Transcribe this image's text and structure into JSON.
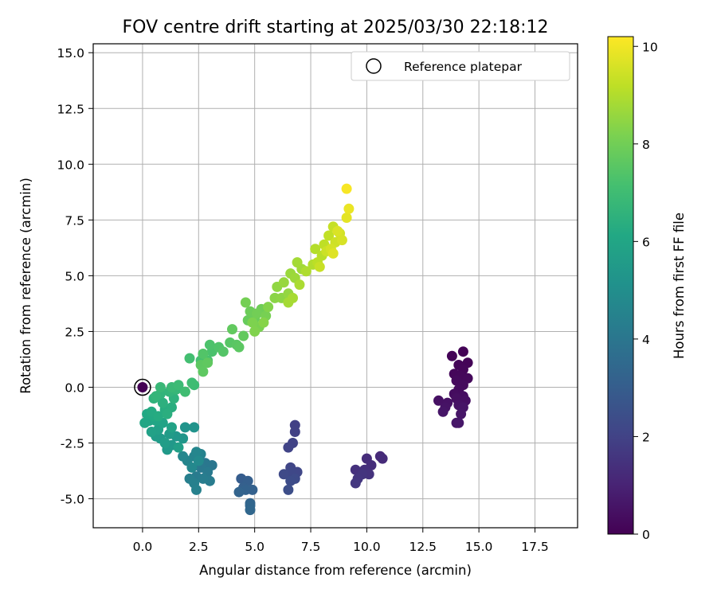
{
  "chart_data": {
    "type": "scatter",
    "title": "FOV centre drift starting at 2025/03/30 22:18:12",
    "xlabel": "Angular distance from reference (arcmin)",
    "ylabel": "Rotation from reference (arcmin)",
    "xlim": [
      -2.2,
      19.4
    ],
    "ylim": [
      -6.3,
      15.4
    ],
    "xticks": [
      "0.0",
      "2.5",
      "5.0",
      "7.5",
      "10.0",
      "12.5",
      "15.0",
      "17.5"
    ],
    "xtick_values": [
      0,
      2.5,
      5,
      7.5,
      10,
      12.5,
      15,
      17.5
    ],
    "yticks": [
      "-5.0",
      "-2.5",
      "0.0",
      "2.5",
      "5.0",
      "7.5",
      "10.0",
      "12.5",
      "15.0"
    ],
    "ytick_values": [
      -5,
      -2.5,
      0,
      2.5,
      5,
      7.5,
      10,
      12.5,
      15
    ],
    "grid": true,
    "legend": {
      "position": "top-right",
      "entries": [
        "Reference platepar"
      ]
    },
    "reference_point": {
      "x": 0.0,
      "y": 0.0
    },
    "colorbar": {
      "label": "Hours from first FF file",
      "range": [
        0,
        10.2
      ],
      "ticks": [
        "0",
        "2",
        "4",
        "6",
        "8",
        "10"
      ],
      "tick_values": [
        0,
        2,
        4,
        6,
        8,
        10
      ],
      "colormap": "viridis"
    },
    "points": [
      {
        "x": 14.3,
        "y": 1.6,
        "t": 0.05
      },
      {
        "x": 13.8,
        "y": 1.4,
        "t": 0.08
      },
      {
        "x": 14.5,
        "y": 1.1,
        "t": 0.1
      },
      {
        "x": 14.1,
        "y": 1.0,
        "t": 0.12
      },
      {
        "x": 14.3,
        "y": 0.8,
        "t": 0.15
      },
      {
        "x": 13.9,
        "y": 0.6,
        "t": 0.18
      },
      {
        "x": 14.2,
        "y": 0.5,
        "t": 0.2
      },
      {
        "x": 14.5,
        "y": 0.4,
        "t": 0.22
      },
      {
        "x": 14.0,
        "y": 0.3,
        "t": 0.25
      },
      {
        "x": 14.3,
        "y": 0.1,
        "t": 0.28
      },
      {
        "x": 14.1,
        "y": -0.1,
        "t": 0.3
      },
      {
        "x": 13.9,
        "y": -0.3,
        "t": 0.33
      },
      {
        "x": 14.3,
        "y": -0.4,
        "t": 0.36
      },
      {
        "x": 14.0,
        "y": -0.5,
        "t": 0.4
      },
      {
        "x": 14.4,
        "y": -0.6,
        "t": 0.42
      },
      {
        "x": 13.2,
        "y": -0.6,
        "t": 0.45
      },
      {
        "x": 13.6,
        "y": -0.7,
        "t": 0.48
      },
      {
        "x": 14.1,
        "y": -0.8,
        "t": 0.5
      },
      {
        "x": 13.5,
        "y": -0.9,
        "t": 0.52
      },
      {
        "x": 14.3,
        "y": -0.9,
        "t": 0.55
      },
      {
        "x": 13.4,
        "y": -1.1,
        "t": 0.58
      },
      {
        "x": 14.2,
        "y": -1.2,
        "t": 0.6
      },
      {
        "x": 14.0,
        "y": -1.6,
        "t": 0.62
      },
      {
        "x": 14.1,
        "y": -1.6,
        "t": 0.64
      },
      {
        "x": 10.6,
        "y": -3.1,
        "t": 1.2
      },
      {
        "x": 10.7,
        "y": -3.2,
        "t": 1.25
      },
      {
        "x": 10.0,
        "y": -3.2,
        "t": 1.3
      },
      {
        "x": 10.2,
        "y": -3.5,
        "t": 1.35
      },
      {
        "x": 9.9,
        "y": -3.7,
        "t": 1.4
      },
      {
        "x": 9.5,
        "y": -3.7,
        "t": 1.45
      },
      {
        "x": 10.1,
        "y": -3.9,
        "t": 1.5
      },
      {
        "x": 9.8,
        "y": -3.9,
        "t": 1.55
      },
      {
        "x": 9.6,
        "y": -4.1,
        "t": 1.6
      },
      {
        "x": 9.5,
        "y": -4.3,
        "t": 1.65
      },
      {
        "x": 6.8,
        "y": -1.7,
        "t": 1.9
      },
      {
        "x": 6.8,
        "y": -2.0,
        "t": 1.95
      },
      {
        "x": 6.7,
        "y": -2.5,
        "t": 2.0
      },
      {
        "x": 6.5,
        "y": -2.7,
        "t": 2.05
      },
      {
        "x": 6.6,
        "y": -3.6,
        "t": 2.1
      },
      {
        "x": 6.9,
        "y": -3.8,
        "t": 2.15
      },
      {
        "x": 6.6,
        "y": -3.8,
        "t": 2.2
      },
      {
        "x": 6.3,
        "y": -3.9,
        "t": 2.25
      },
      {
        "x": 6.8,
        "y": -4.1,
        "t": 2.3
      },
      {
        "x": 6.6,
        "y": -4.2,
        "t": 2.35
      },
      {
        "x": 6.5,
        "y": -4.6,
        "t": 2.4
      },
      {
        "x": 4.4,
        "y": -4.1,
        "t": 3.0
      },
      {
        "x": 4.7,
        "y": -4.2,
        "t": 3.05
      },
      {
        "x": 4.5,
        "y": -4.5,
        "t": 3.1
      },
      {
        "x": 4.9,
        "y": -4.6,
        "t": 3.15
      },
      {
        "x": 4.6,
        "y": -4.6,
        "t": 3.2
      },
      {
        "x": 4.3,
        "y": -4.7,
        "t": 3.25
      },
      {
        "x": 4.8,
        "y": -5.2,
        "t": 3.3
      },
      {
        "x": 4.8,
        "y": -5.3,
        "t": 3.35
      },
      {
        "x": 4.8,
        "y": -5.5,
        "t": 3.4
      },
      {
        "x": 3.1,
        "y": -3.5,
        "t": 4.0
      },
      {
        "x": 2.8,
        "y": -3.4,
        "t": 4.05
      },
      {
        "x": 2.6,
        "y": -3.6,
        "t": 4.1
      },
      {
        "x": 2.9,
        "y": -3.8,
        "t": 4.15
      },
      {
        "x": 2.4,
        "y": -4.0,
        "t": 4.2
      },
      {
        "x": 3.0,
        "y": -4.2,
        "t": 4.25
      },
      {
        "x": 2.7,
        "y": -4.1,
        "t": 4.3
      },
      {
        "x": 2.1,
        "y": -4.1,
        "t": 4.35
      },
      {
        "x": 2.3,
        "y": -4.3,
        "t": 4.4
      },
      {
        "x": 2.4,
        "y": -4.6,
        "t": 4.45
      },
      {
        "x": 2.6,
        "y": -3.0,
        "t": 4.5
      },
      {
        "x": 2.3,
        "y": -3.1,
        "t": 4.55
      },
      {
        "x": 2.0,
        "y": -3.3,
        "t": 4.6
      },
      {
        "x": 2.4,
        "y": -2.9,
        "t": 4.65
      },
      {
        "x": 1.8,
        "y": -3.1,
        "t": 4.7
      },
      {
        "x": 2.2,
        "y": -3.6,
        "t": 4.75
      },
      {
        "x": 2.5,
        "y": -3.3,
        "t": 4.8
      },
      {
        "x": 2.3,
        "y": -1.8,
        "t": 5.2
      },
      {
        "x": 1.9,
        "y": -1.8,
        "t": 5.25
      },
      {
        "x": 1.8,
        "y": -2.3,
        "t": 5.3
      },
      {
        "x": 1.5,
        "y": -2.2,
        "t": 5.35
      },
      {
        "x": 1.3,
        "y": -2.6,
        "t": 5.4
      },
      {
        "x": 1.1,
        "y": -2.8,
        "t": 5.45
      },
      {
        "x": 0.8,
        "y": -2.3,
        "t": 5.5
      },
      {
        "x": 1.2,
        "y": -2.1,
        "t": 5.55
      },
      {
        "x": 0.6,
        "y": -2.2,
        "t": 5.6
      },
      {
        "x": 1.0,
        "y": -2.5,
        "t": 5.65
      },
      {
        "x": 1.6,
        "y": -2.7,
        "t": 5.7
      },
      {
        "x": 0.7,
        "y": -1.9,
        "t": 5.75
      },
      {
        "x": 0.4,
        "y": -2.0,
        "t": 5.8
      },
      {
        "x": 1.3,
        "y": -1.8,
        "t": 5.85
      },
      {
        "x": 0.9,
        "y": -1.6,
        "t": 5.9
      },
      {
        "x": 0.3,
        "y": -1.5,
        "t": 5.95
      },
      {
        "x": 0.6,
        "y": -1.5,
        "t": 6.0
      },
      {
        "x": 0.1,
        "y": -1.6,
        "t": 6.05
      },
      {
        "x": 0.2,
        "y": -1.2,
        "t": 6.1
      },
      {
        "x": 0.5,
        "y": -1.3,
        "t": 6.15
      },
      {
        "x": 0.4,
        "y": -1.1,
        "t": 6.2
      },
      {
        "x": 0.7,
        "y": -1.3,
        "t": 6.25
      },
      {
        "x": 1.0,
        "y": -1.0,
        "t": 6.3
      },
      {
        "x": 1.3,
        "y": -0.9,
        "t": 6.35
      },
      {
        "x": 1.1,
        "y": -1.2,
        "t": 6.4
      },
      {
        "x": 0.9,
        "y": -0.7,
        "t": 6.45
      },
      {
        "x": 1.4,
        "y": -0.5,
        "t": 6.5
      },
      {
        "x": 0.5,
        "y": -0.5,
        "t": 6.55
      },
      {
        "x": 0.8,
        "y": -0.3,
        "t": 6.6
      },
      {
        "x": 1.2,
        "y": -0.2,
        "t": 6.65
      },
      {
        "x": 0.6,
        "y": -0.4,
        "t": 6.7
      },
      {
        "x": 1.5,
        "y": -0.1,
        "t": 6.75
      },
      {
        "x": 0.8,
        "y": 0.0,
        "t": 6.8
      },
      {
        "x": 1.3,
        "y": 0.0,
        "t": 6.85
      },
      {
        "x": 1.6,
        "y": 0.1,
        "t": 6.9
      },
      {
        "x": 2.3,
        "y": 0.1,
        "t": 6.95
      },
      {
        "x": 2.2,
        "y": 0.2,
        "t": 7.0
      },
      {
        "x": 1.9,
        "y": -0.2,
        "t": 7.02
      },
      {
        "x": 2.1,
        "y": 1.3,
        "t": 7.1
      },
      {
        "x": 2.6,
        "y": 1.2,
        "t": 7.15
      },
      {
        "x": 2.9,
        "y": 1.2,
        "t": 7.2
      },
      {
        "x": 3.1,
        "y": 1.6,
        "t": 7.25
      },
      {
        "x": 3.0,
        "y": 1.9,
        "t": 7.3
      },
      {
        "x": 3.4,
        "y": 1.8,
        "t": 7.35
      },
      {
        "x": 2.7,
        "y": 1.5,
        "t": 7.4
      },
      {
        "x": 3.6,
        "y": 1.6,
        "t": 7.45
      },
      {
        "x": 3.9,
        "y": 2.0,
        "t": 7.5
      },
      {
        "x": 4.2,
        "y": 1.9,
        "t": 7.55
      },
      {
        "x": 4.3,
        "y": 1.8,
        "t": 7.6
      },
      {
        "x": 2.6,
        "y": 1.0,
        "t": 7.62
      },
      {
        "x": 2.7,
        "y": 0.7,
        "t": 7.64
      },
      {
        "x": 2.9,
        "y": 1.1,
        "t": 7.66
      },
      {
        "x": 4.0,
        "y": 2.6,
        "t": 7.7
      },
      {
        "x": 4.5,
        "y": 2.3,
        "t": 7.72
      },
      {
        "x": 4.7,
        "y": 3.0,
        "t": 7.8
      },
      {
        "x": 5.0,
        "y": 3.1,
        "t": 7.85
      },
      {
        "x": 4.8,
        "y": 3.4,
        "t": 7.9
      },
      {
        "x": 5.3,
        "y": 3.5,
        "t": 7.95
      },
      {
        "x": 5.1,
        "y": 3.3,
        "t": 8.0
      },
      {
        "x": 4.6,
        "y": 3.8,
        "t": 8.05
      },
      {
        "x": 5.5,
        "y": 3.2,
        "t": 8.1
      },
      {
        "x": 5.2,
        "y": 2.7,
        "t": 8.15
      },
      {
        "x": 4.9,
        "y": 2.9,
        "t": 8.2
      },
      {
        "x": 5.0,
        "y": 2.5,
        "t": 8.25
      },
      {
        "x": 5.6,
        "y": 3.6,
        "t": 8.3
      },
      {
        "x": 5.4,
        "y": 2.9,
        "t": 8.35
      },
      {
        "x": 5.9,
        "y": 4.0,
        "t": 8.4
      },
      {
        "x": 6.2,
        "y": 4.0,
        "t": 8.45
      },
      {
        "x": 6.0,
        "y": 4.5,
        "t": 8.5
      },
      {
        "x": 6.5,
        "y": 4.2,
        "t": 8.55
      },
      {
        "x": 6.3,
        "y": 4.7,
        "t": 8.6
      },
      {
        "x": 6.6,
        "y": 5.1,
        "t": 8.65
      },
      {
        "x": 6.8,
        "y": 4.9,
        "t": 8.7
      },
      {
        "x": 7.1,
        "y": 5.3,
        "t": 8.75
      },
      {
        "x": 6.9,
        "y": 5.6,
        "t": 8.8
      },
      {
        "x": 6.5,
        "y": 3.8,
        "t": 8.82
      },
      {
        "x": 6.7,
        "y": 4.0,
        "t": 8.84
      },
      {
        "x": 7.0,
        "y": 4.6,
        "t": 8.9
      },
      {
        "x": 7.3,
        "y": 5.2,
        "t": 8.95
      },
      {
        "x": 7.6,
        "y": 5.5,
        "t": 9.0
      },
      {
        "x": 7.7,
        "y": 6.2,
        "t": 9.05
      },
      {
        "x": 8.0,
        "y": 5.9,
        "t": 9.1
      },
      {
        "x": 7.8,
        "y": 5.6,
        "t": 9.15
      },
      {
        "x": 8.1,
        "y": 6.4,
        "t": 9.2
      },
      {
        "x": 8.3,
        "y": 6.8,
        "t": 9.25
      },
      {
        "x": 8.5,
        "y": 7.2,
        "t": 9.3
      },
      {
        "x": 7.9,
        "y": 5.4,
        "t": 9.35
      },
      {
        "x": 8.2,
        "y": 6.1,
        "t": 9.4
      },
      {
        "x": 8.6,
        "y": 6.5,
        "t": 9.45
      },
      {
        "x": 8.8,
        "y": 6.9,
        "t": 9.5
      },
      {
        "x": 8.4,
        "y": 6.2,
        "t": 9.55
      },
      {
        "x": 8.9,
        "y": 6.6,
        "t": 9.6
      },
      {
        "x": 8.7,
        "y": 7.0,
        "t": 9.65
      },
      {
        "x": 8.5,
        "y": 6.0,
        "t": 9.7
      },
      {
        "x": 9.1,
        "y": 7.6,
        "t": 9.8
      },
      {
        "x": 9.2,
        "y": 8.0,
        "t": 9.9
      },
      {
        "x": 9.1,
        "y": 8.9,
        "t": 10.1
      }
    ]
  }
}
